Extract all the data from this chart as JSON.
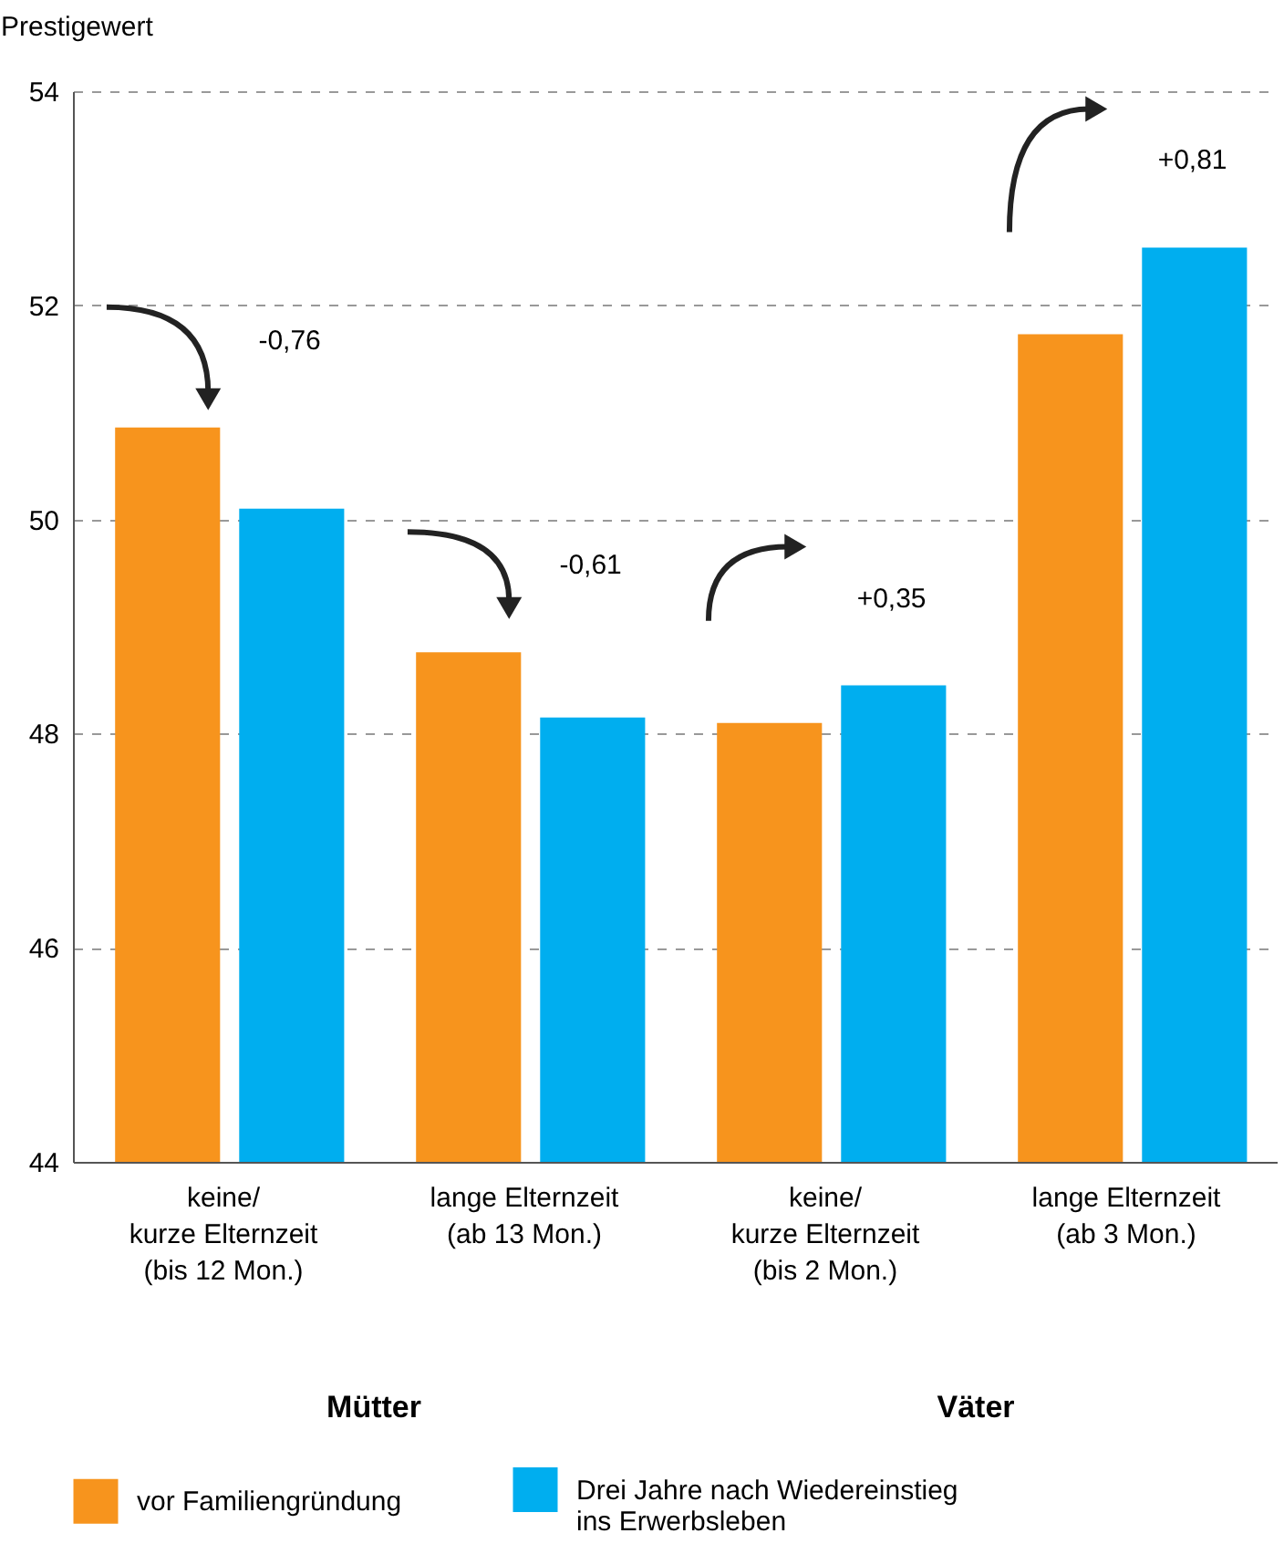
{
  "chart_data": {
    "type": "bar",
    "ylabel": "Prestigewert",
    "categories": [
      "keine/\nkurze Elternzeit\n(bis 12 Mon.)",
      "lange Elternzeit\n(ab 13 Mon.)",
      "keine/\nkurze Elternzeit\n(bis 2 Mon.)",
      "lange Elternzeit\n(ab 3 Mon.)"
    ],
    "series": [
      {
        "name": "vor Familiengründung",
        "color": "#f7941d",
        "values": [
          50.86,
          48.76,
          48.1,
          51.73
        ]
      },
      {
        "name": "Drei Jahre nach Wiedereinstieg\nins Erwerbsleben",
        "color": "#00aeef",
        "values": [
          50.1,
          48.15,
          48.45,
          52.54
        ]
      }
    ],
    "ylim": [
      44,
      54
    ],
    "yticks": [
      44,
      46,
      48,
      50,
      52,
      54
    ],
    "grid": "y",
    "legend": "bottom",
    "annotations": [
      "-0,76",
      "-0,61",
      "+0,35",
      "+0,81",
      "Mütter",
      "Väter"
    ]
  }
}
